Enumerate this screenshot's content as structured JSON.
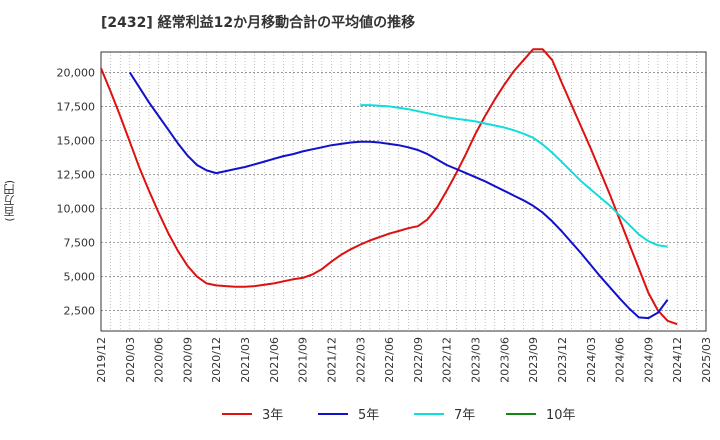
{
  "title": "[2432]  経常利益12か月移動合計の平均値の推移",
  "y_unit": "(百万円)",
  "chart_data": {
    "type": "line",
    "title": "[2432]  経常利益12か月移動合計の平均値の推移",
    "ylabel": "(百万円)",
    "ylim": [
      1000,
      21500
    ],
    "xlim": [
      "2019-12",
      "2025-03"
    ],
    "yticks": [
      2500,
      5000,
      7500,
      10000,
      12500,
      15000,
      17500,
      20000
    ],
    "ytick_labels": [
      "2,500",
      "5,000",
      "7,500",
      "10,000",
      "12,500",
      "15,000",
      "17,500",
      "20,000"
    ],
    "xtick_labels": [
      "2019/12",
      "2020/03",
      "2020/06",
      "2020/09",
      "2020/12",
      "2021/03",
      "2021/06",
      "2021/09",
      "2021/12",
      "2022/03",
      "2022/06",
      "2022/09",
      "2022/12",
      "2023/03",
      "2023/06",
      "2023/09",
      "2023/12",
      "2024/03",
      "2024/06",
      "2024/09",
      "2024/12",
      "2025/03"
    ],
    "grid": true,
    "legend_position": "bottom",
    "series": [
      {
        "name": "3年",
        "color": "#dd1111",
        "points": [
          [
            "2019-12",
            20300
          ],
          [
            "2020-01",
            18600
          ],
          [
            "2020-02",
            16800
          ],
          [
            "2020-03",
            14900
          ],
          [
            "2020-04",
            13000
          ],
          [
            "2020-05",
            11300
          ],
          [
            "2020-06",
            9700
          ],
          [
            "2020-07",
            8200
          ],
          [
            "2020-08",
            6900
          ],
          [
            "2020-09",
            5800
          ],
          [
            "2020-10",
            5000
          ],
          [
            "2020-11",
            4500
          ],
          [
            "2020-12",
            4350
          ],
          [
            "2021-01",
            4300
          ],
          [
            "2021-02",
            4250
          ],
          [
            "2021-03",
            4250
          ],
          [
            "2021-04",
            4300
          ],
          [
            "2021-05",
            4400
          ],
          [
            "2021-06",
            4500
          ],
          [
            "2021-07",
            4650
          ],
          [
            "2021-08",
            4800
          ],
          [
            "2021-09",
            4900
          ],
          [
            "2021-10",
            5150
          ],
          [
            "2021-11",
            5550
          ],
          [
            "2021-12",
            6100
          ],
          [
            "2022-01",
            6600
          ],
          [
            "2022-02",
            7000
          ],
          [
            "2022-03",
            7350
          ],
          [
            "2022-04",
            7650
          ],
          [
            "2022-05",
            7900
          ],
          [
            "2022-06",
            8150
          ],
          [
            "2022-07",
            8350
          ],
          [
            "2022-08",
            8550
          ],
          [
            "2022-09",
            8700
          ],
          [
            "2022-10",
            9200
          ],
          [
            "2022-11",
            10100
          ],
          [
            "2022-12",
            11300
          ],
          [
            "2023-01",
            12600
          ],
          [
            "2023-02",
            14000
          ],
          [
            "2023-03",
            15500
          ],
          [
            "2023-04",
            16800
          ],
          [
            "2023-05",
            18000
          ],
          [
            "2023-06",
            19100
          ],
          [
            "2023-07",
            20100
          ],
          [
            "2023-08",
            20900
          ],
          [
            "2023-09",
            21700
          ],
          [
            "2023-10",
            21700
          ],
          [
            "2023-11",
            20900
          ],
          [
            "2023-12",
            19200
          ],
          [
            "2024-01",
            17600
          ],
          [
            "2024-02",
            16000
          ],
          [
            "2024-03",
            14400
          ],
          [
            "2024-04",
            12700
          ],
          [
            "2024-05",
            11000
          ],
          [
            "2024-06",
            9200
          ],
          [
            "2024-07",
            7400
          ],
          [
            "2024-08",
            5600
          ],
          [
            "2024-09",
            3800
          ],
          [
            "2024-10",
            2500
          ],
          [
            "2024-11",
            1750
          ],
          [
            "2024-12",
            1500
          ]
        ]
      },
      {
        "name": "5年",
        "color": "#1111cc",
        "points": [
          [
            "2020-03",
            20000
          ],
          [
            "2020-04",
            18900
          ],
          [
            "2020-05",
            17800
          ],
          [
            "2020-06",
            16800
          ],
          [
            "2020-07",
            15800
          ],
          [
            "2020-08",
            14800
          ],
          [
            "2020-09",
            13900
          ],
          [
            "2020-10",
            13200
          ],
          [
            "2020-11",
            12800
          ],
          [
            "2020-12",
            12600
          ],
          [
            "2021-01",
            12750
          ],
          [
            "2021-02",
            12900
          ],
          [
            "2021-03",
            13050
          ],
          [
            "2021-04",
            13250
          ],
          [
            "2021-05",
            13450
          ],
          [
            "2021-06",
            13650
          ],
          [
            "2021-07",
            13850
          ],
          [
            "2021-08",
            14000
          ],
          [
            "2021-09",
            14200
          ],
          [
            "2021-10",
            14350
          ],
          [
            "2021-11",
            14500
          ],
          [
            "2021-12",
            14650
          ],
          [
            "2022-01",
            14750
          ],
          [
            "2022-02",
            14850
          ],
          [
            "2022-03",
            14900
          ],
          [
            "2022-04",
            14900
          ],
          [
            "2022-05",
            14850
          ],
          [
            "2022-06",
            14750
          ],
          [
            "2022-07",
            14650
          ],
          [
            "2022-08",
            14500
          ],
          [
            "2022-09",
            14300
          ],
          [
            "2022-10",
            14000
          ],
          [
            "2022-11",
            13600
          ],
          [
            "2022-12",
            13200
          ],
          [
            "2023-01",
            12900
          ],
          [
            "2023-02",
            12600
          ],
          [
            "2023-03",
            12300
          ],
          [
            "2023-04",
            12000
          ],
          [
            "2023-05",
            11650
          ],
          [
            "2023-06",
            11300
          ],
          [
            "2023-07",
            10950
          ],
          [
            "2023-08",
            10600
          ],
          [
            "2023-09",
            10200
          ],
          [
            "2023-10",
            9700
          ],
          [
            "2023-11",
            9050
          ],
          [
            "2023-12",
            8300
          ],
          [
            "2024-01",
            7500
          ],
          [
            "2024-02",
            6700
          ],
          [
            "2024-03",
            5850
          ],
          [
            "2024-04",
            5000
          ],
          [
            "2024-05",
            4200
          ],
          [
            "2024-06",
            3400
          ],
          [
            "2024-07",
            2650
          ],
          [
            "2024-08",
            2000
          ],
          [
            "2024-09",
            1950
          ],
          [
            "2024-10",
            2350
          ],
          [
            "2024-11",
            3300
          ]
        ]
      },
      {
        "name": "7年",
        "color": "#11dddd",
        "points": [
          [
            "2022-03",
            17600
          ],
          [
            "2022-04",
            17600
          ],
          [
            "2022-05",
            17550
          ],
          [
            "2022-06",
            17500
          ],
          [
            "2022-07",
            17400
          ],
          [
            "2022-08",
            17300
          ],
          [
            "2022-09",
            17150
          ],
          [
            "2022-10",
            17000
          ],
          [
            "2022-11",
            16850
          ],
          [
            "2022-12",
            16700
          ],
          [
            "2023-01",
            16600
          ],
          [
            "2023-02",
            16500
          ],
          [
            "2023-03",
            16400
          ],
          [
            "2023-04",
            16250
          ],
          [
            "2023-05",
            16100
          ],
          [
            "2023-06",
            15950
          ],
          [
            "2023-07",
            15750
          ],
          [
            "2023-08",
            15500
          ],
          [
            "2023-09",
            15200
          ],
          [
            "2023-10",
            14700
          ],
          [
            "2023-11",
            14100
          ],
          [
            "2023-12",
            13400
          ],
          [
            "2024-01",
            12700
          ],
          [
            "2024-02",
            12000
          ],
          [
            "2024-03",
            11400
          ],
          [
            "2024-04",
            10800
          ],
          [
            "2024-05",
            10200
          ],
          [
            "2024-06",
            9500
          ],
          [
            "2024-07",
            8800
          ],
          [
            "2024-08",
            8100
          ],
          [
            "2024-09",
            7600
          ],
          [
            "2024-10",
            7300
          ],
          [
            "2024-11",
            7200
          ]
        ]
      },
      {
        "name": "10年",
        "color": "#118811",
        "points": []
      }
    ]
  }
}
